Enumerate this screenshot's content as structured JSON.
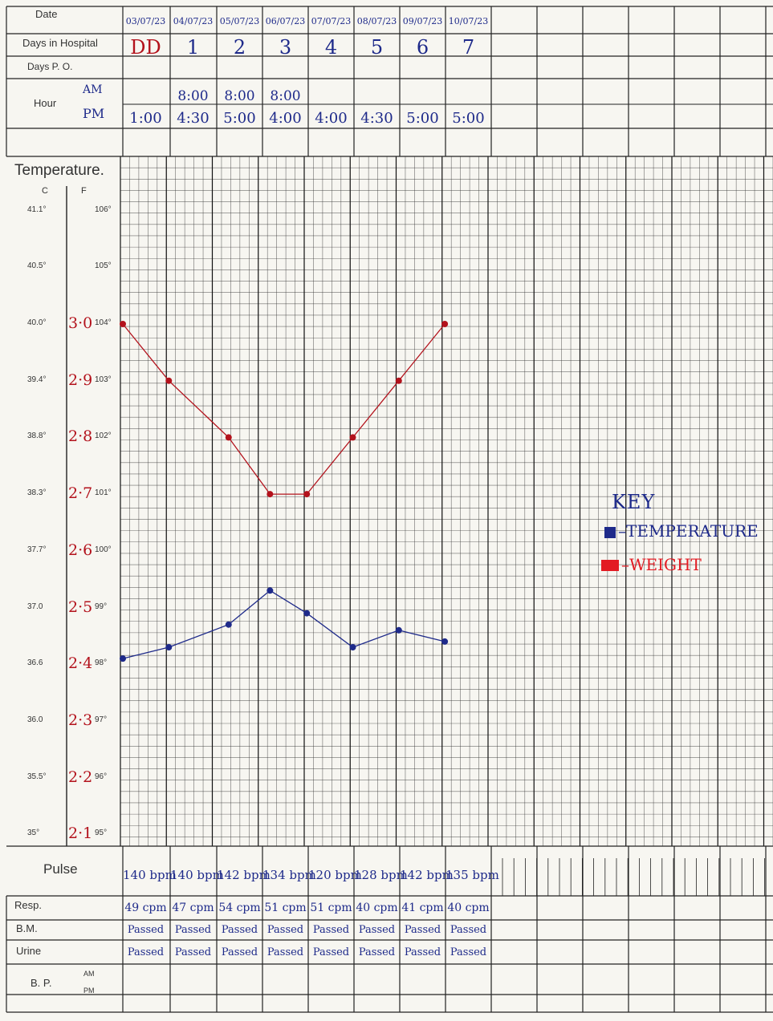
{
  "header": {
    "date_label": "Date",
    "days_in_hospital_label": "Days in Hospital",
    "days_po_label": "Days P. O.",
    "hour_label": "Hour",
    "am_label": "AM",
    "pm_label": "PM",
    "dates": [
      "03/07/23",
      "04/07/23",
      "05/07/23",
      "06/07/23",
      "07/07/23",
      "08/07/23",
      "09/07/23",
      "10/07/23"
    ],
    "days": [
      "DD",
      "1",
      "2",
      "3",
      "4",
      "5",
      "6",
      "7"
    ],
    "am_hours": [
      "",
      "8:00",
      "8:00",
      "8:00",
      "",
      "",
      "",
      ""
    ],
    "pm_hours": [
      "1:00",
      "4:30",
      "5:00",
      "4:00",
      "4:00",
      "4:30",
      "5:00",
      "5:00"
    ]
  },
  "temperature_label": "Temperature.",
  "scale": {
    "c_header": "C",
    "f_header": "F",
    "celsius": [
      "41.1°",
      "40.5°",
      "40.0°",
      "39.4°",
      "38.8°",
      "38.3°",
      "37.7°",
      "37.0",
      "36.6",
      "36.0",
      "35.5°",
      "35°"
    ],
    "fahrenheit": [
      "106°",
      "105°",
      "104°",
      "103°",
      "102°",
      "101°",
      "100°",
      "99°",
      "98°",
      "97°",
      "96°",
      "95°"
    ],
    "weight": [
      "3·0",
      "2·9",
      "2·8",
      "2·7",
      "2·6",
      "2·5",
      "2·4",
      "2·3",
      "2·2",
      "2·1"
    ]
  },
  "chart_data": {
    "type": "line",
    "title": "Temperature.",
    "xlabel": "",
    "ylabel": "",
    "categories": [
      "03/07/23",
      "04/07/23",
      "05/07/23",
      "06/07/23",
      "07/07/23",
      "08/07/23",
      "09/07/23",
      "10/07/23"
    ],
    "x_positions": [
      0,
      1,
      2,
      3,
      4,
      5,
      6,
      7
    ],
    "series": [
      {
        "name": "TEMPERATURE",
        "color": "#1e2a8a",
        "axis": "fahrenheit",
        "x": [
          0,
          1,
          2.3,
          3.2,
          4,
          5,
          6,
          7
        ],
        "values": [
          98.1,
          98.3,
          98.7,
          99.3,
          98.9,
          98.3,
          98.6,
          98.4
        ]
      },
      {
        "name": "WEIGHT",
        "color": "#b3121c",
        "axis": "weight_kg",
        "x": [
          0,
          1,
          2.3,
          3.2,
          4,
          5,
          6,
          7
        ],
        "values": [
          3.0,
          2.9,
          2.8,
          2.7,
          2.7,
          2.8,
          2.9,
          3.0
        ]
      }
    ],
    "ylim_fahrenheit": [
      95,
      106
    ],
    "ylim_weight": [
      2.1,
      3.0
    ],
    "grid": true,
    "legend": "right"
  },
  "key": {
    "title": "KEY",
    "temperature": "TEMPERATURE",
    "weight": "WEIGHT",
    "temp_color": "#1e2a8a",
    "weight_color": "#e31b23"
  },
  "vitals": {
    "pulse_label": "Pulse",
    "resp_label": "Resp.",
    "bm_label": "B.M.",
    "urine_label": "Urine",
    "bp_label": "B. P.",
    "bp_am": "AM",
    "bp_pm": "PM",
    "pulse": [
      "140 bpm",
      "140 bpm",
      "142 bpm",
      "134 bpm",
      "120 bpm",
      "128 bpm",
      "142 bpm",
      "135 bpm"
    ],
    "resp": [
      "49 cpm",
      "47 cpm",
      "54 cpm",
      "51 cpm",
      "51 cpm",
      "40 cpm",
      "41 cpm",
      "40 cpm"
    ],
    "bm": [
      "Passed",
      "Passed",
      "Passed",
      "Passed",
      "Passed",
      "Passed",
      "Passed",
      "Passed"
    ],
    "urine": [
      "Passed",
      "Passed",
      "Passed",
      "Passed",
      "Passed",
      "Passed",
      "Passed",
      "Passed"
    ]
  }
}
